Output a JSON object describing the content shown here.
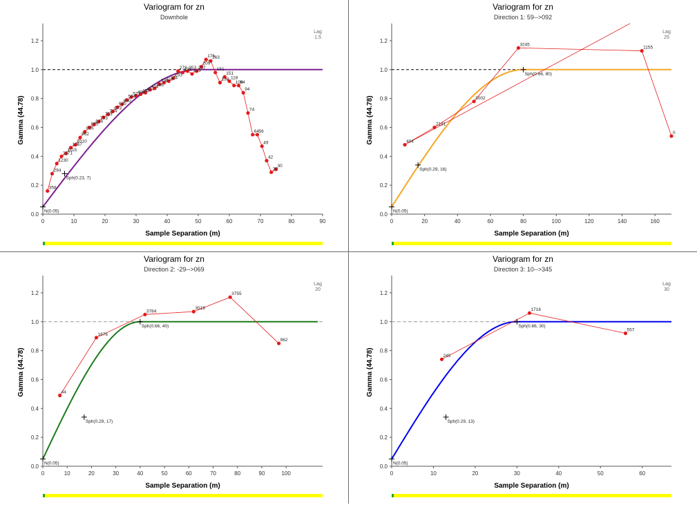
{
  "colors": {
    "points": "#e41a1c",
    "sill_line": "#000000",
    "progress_bar": "#ffff00",
    "progress_start": "#22aa22"
  },
  "chart_data": [
    {
      "type": "line",
      "title": "Variogram for zn",
      "subtitle": "Downhole",
      "xlabel": "Sample Separation (m)",
      "ylabel": "Gamma (44.78)",
      "xlim": [
        0,
        90
      ],
      "ylim": [
        0,
        1.3
      ],
      "xticks": [
        0,
        10,
        20,
        30,
        40,
        50,
        60,
        70,
        80,
        90
      ],
      "xtick_labels": [
        "0",
        "10",
        "20",
        "30",
        "40",
        "50",
        "60",
        "70",
        "80",
        "90"
      ],
      "yticks": [
        0,
        0.2,
        0.4,
        0.6,
        0.8,
        1.0,
        1.2
      ],
      "ytick_labels": [
        "0.0",
        "0.2",
        "0.4",
        "0.6",
        "0.8",
        "1.0",
        "1.2"
      ],
      "lag_label": "Lag",
      "lag_value": "1.5",
      "model_color": "#7b1f8f",
      "sill_dash": "4,3",
      "sill_color": "#000000",
      "model": {
        "nugget": 0.05,
        "sill": 1.0,
        "range": 50,
        "max_x": 90
      },
      "model_labels": [
        {
          "x": 0,
          "y": 0.05,
          "text": "N(0.05)"
        },
        {
          "x": 7,
          "y": 0.28,
          "text": "Sph(0.23, 7)"
        }
      ],
      "experimental": [
        {
          "x": 1.5,
          "y": 0.16,
          "label": "358"
        },
        {
          "x": 3,
          "y": 0.28,
          "label": "294"
        },
        {
          "x": 4.5,
          "y": 0.35,
          "label": "1230"
        },
        {
          "x": 6,
          "y": 0.4,
          "label": "1171"
        },
        {
          "x": 7.5,
          "y": 0.42,
          "label": "1115"
        },
        {
          "x": 9,
          "y": 0.46,
          "label": "1067"
        },
        {
          "x": 10.5,
          "y": 0.48,
          "label": "1010"
        },
        {
          "x": 12,
          "y": 0.53,
          "label": "962"
        },
        {
          "x": 13.5,
          "y": 0.57,
          "label": "916"
        },
        {
          "x": 15,
          "y": 0.6,
          "label": "875"
        },
        {
          "x": 16.5,
          "y": 0.62,
          "label": "834"
        },
        {
          "x": 18,
          "y": 0.64,
          "label": "793"
        },
        {
          "x": 19.5,
          "y": 0.67,
          "label": "753"
        },
        {
          "x": 21,
          "y": 0.69,
          "label": "714"
        },
        {
          "x": 22.5,
          "y": 0.71,
          "label": "673"
        },
        {
          "x": 24,
          "y": 0.74,
          "label": "635"
        },
        {
          "x": 25.5,
          "y": 0.76,
          "label": "600"
        },
        {
          "x": 27,
          "y": 0.79,
          "label": "564"
        },
        {
          "x": 28.5,
          "y": 0.81,
          "label": "527"
        },
        {
          "x": 30,
          "y": 0.82,
          "label": "494"
        },
        {
          "x": 31.5,
          "y": 0.83,
          "label": "457"
        },
        {
          "x": 33,
          "y": 0.84,
          "label": "437"
        },
        {
          "x": 34.5,
          "y": 0.86,
          "label": "411"
        },
        {
          "x": 36,
          "y": 0.87,
          "label": "386"
        },
        {
          "x": 37.5,
          "y": 0.9,
          "label": "338"
        },
        {
          "x": 39,
          "y": 0.91,
          "label": "313"
        },
        {
          "x": 40.5,
          "y": 0.92,
          "label": "304"
        },
        {
          "x": 42,
          "y": 0.94,
          "label": "293"
        },
        {
          "x": 43.5,
          "y": 0.99,
          "label": "272"
        },
        {
          "x": 45,
          "y": 0.98,
          "label": "239"
        },
        {
          "x": 46.5,
          "y": 0.99,
          "label": "253"
        },
        {
          "x": 48,
          "y": 0.97,
          "label": "219"
        },
        {
          "x": 49.5,
          "y": 0.99,
          "label": "207"
        },
        {
          "x": 51,
          "y": 1.02,
          "label": "209"
        },
        {
          "x": 52.5,
          "y": 1.07,
          "label": "176"
        },
        {
          "x": 54,
          "y": 1.06,
          "label": "163"
        },
        {
          "x": 55.5,
          "y": 0.98,
          "label": "151"
        },
        {
          "x": 57,
          "y": 0.91,
          "label": "133"
        },
        {
          "x": 58.5,
          "y": 0.95,
          "label": "151"
        },
        {
          "x": 60,
          "y": 0.92,
          "label": "118"
        },
        {
          "x": 61.5,
          "y": 0.89,
          "label": "108"
        },
        {
          "x": 63,
          "y": 0.89,
          "label": "94"
        },
        {
          "x": 64.5,
          "y": 0.84,
          "label": "94"
        },
        {
          "x": 66,
          "y": 0.7,
          "label": "74"
        },
        {
          "x": 67.5,
          "y": 0.55,
          "label": "64"
        },
        {
          "x": 69,
          "y": 0.55,
          "label": "56"
        },
        {
          "x": 70.5,
          "y": 0.47,
          "label": "49"
        },
        {
          "x": 72,
          "y": 0.37,
          "label": "42"
        },
        {
          "x": 73.5,
          "y": 0.29,
          "label": "39"
        },
        {
          "x": 75,
          "y": 0.31,
          "label": "30"
        }
      ]
    },
    {
      "type": "line",
      "title": "Variogram for zn",
      "subtitle": "Direction 1: 59-->092",
      "xlabel": "Sample Separation (m)",
      "ylabel": "Gamma (44.78)",
      "xlim": [
        0,
        170
      ],
      "ylim": [
        0,
        1.3
      ],
      "xticks": [
        0,
        20,
        40,
        60,
        80,
        100,
        120,
        140,
        160
      ],
      "xtick_labels": [
        "0",
        "20",
        "40",
        "60",
        "80",
        "100",
        "120",
        "140",
        "160"
      ],
      "yticks": [
        0,
        0.2,
        0.4,
        0.6,
        0.8,
        1.0,
        1.2
      ],
      "ytick_labels": [
        "0.0",
        "0.2",
        "0.4",
        "0.6",
        "0.8",
        "1.0",
        "1.2"
      ],
      "lag_label": "Lag",
      "lag_value": "25",
      "model_color": "#f5a623",
      "sill_dash": "4,3",
      "sill_color": "#000000",
      "model": {
        "nugget": 0.05,
        "sill": 1.0,
        "range": 80,
        "max_x": 170
      },
      "model_labels": [
        {
          "x": 0,
          "y": 0.05,
          "text": "N(0.05)"
        },
        {
          "x": 16,
          "y": 0.34,
          "text": "Sph(0.29, 16)"
        },
        {
          "x": 80,
          "y": 1.0,
          "text": "Sph(0.66, 80)"
        }
      ],
      "experimental": [
        {
          "x": 8,
          "y": 0.48,
          "label": "404"
        },
        {
          "x": 26,
          "y": 0.6,
          "label": "2191"
        },
        {
          "x": 50,
          "y": 0.78,
          "label": "3002"
        },
        {
          "x": 77,
          "y": 1.15,
          "label": "3245"
        },
        {
          "x": 152,
          "y": 1.13,
          "label": "1155"
        },
        {
          "x": 170,
          "y": 0.54,
          "label": "0"
        }
      ],
      "extra_line_start": {
        "x": 145,
        "y": 1.32
      }
    },
    {
      "type": "line",
      "title": "Variogram for zn",
      "subtitle": "Direction 2: -29-->069",
      "xlabel": "Sample Separation (m)",
      "ylabel": "Gamma (44.78)",
      "xlim": [
        0,
        115
      ],
      "ylim": [
        0,
        1.3
      ],
      "xticks": [
        0,
        10,
        20,
        30,
        40,
        50,
        60,
        70,
        80,
        90,
        100
      ],
      "xtick_labels": [
        "0",
        "10",
        "20",
        "30",
        "40",
        "50",
        "60",
        "70",
        "80",
        "90",
        "100"
      ],
      "yticks": [
        0,
        0.2,
        0.4,
        0.6,
        0.8,
        1.0,
        1.2
      ],
      "ytick_labels": [
        "0.0",
        "0.2",
        "0.4",
        "0.6",
        "0.8",
        "1.0",
        "1.2"
      ],
      "lag_label": "Lag",
      "lag_value": "20",
      "model_color": "#1a7a1a",
      "sill_dash": "5,3",
      "sill_color": "#999999",
      "model": {
        "nugget": 0.05,
        "sill": 1.0,
        "range": 40,
        "max_x": 113
      },
      "model_labels": [
        {
          "x": 0,
          "y": 0.05,
          "text": "N(0.05)"
        },
        {
          "x": 17,
          "y": 0.34,
          "text": "Sph(0.29, 17)"
        },
        {
          "x": 40,
          "y": 1.0,
          "text": "Sph(0.66, 40)"
        }
      ],
      "experimental": [
        {
          "x": 7,
          "y": 0.49,
          "label": "44"
        },
        {
          "x": 22,
          "y": 0.89,
          "label": "1676"
        },
        {
          "x": 42,
          "y": 1.05,
          "label": "3784"
        },
        {
          "x": 62,
          "y": 1.07,
          "label": "3519"
        },
        {
          "x": 77,
          "y": 1.17,
          "label": "3755"
        },
        {
          "x": 97,
          "y": 0.85,
          "label": "962"
        }
      ]
    },
    {
      "type": "line",
      "title": "Variogram for zn",
      "subtitle": "Direction 3: 10-->345",
      "xlabel": "Sample Separation (m)",
      "ylabel": "Gamma (44.78)",
      "xlim": [
        0,
        67
      ],
      "ylim": [
        0,
        1.3
      ],
      "xticks": [
        0,
        10,
        20,
        30,
        40,
        50,
        60
      ],
      "xtick_labels": [
        "0",
        "10",
        "20",
        "30",
        "40",
        "50",
        "60"
      ],
      "yticks": [
        0,
        0.2,
        0.4,
        0.6,
        0.8,
        1.0,
        1.2
      ],
      "ytick_labels": [
        "0.0",
        "0.2",
        "0.4",
        "0.6",
        "0.8",
        "1.0",
        "1.2"
      ],
      "lag_label": "Lag",
      "lag_value": "30",
      "model_color": "#0000ee",
      "sill_dash": "5,3",
      "sill_color": "#999999",
      "model": {
        "nugget": 0.05,
        "sill": 1.0,
        "range": 30,
        "max_x": 67
      },
      "model_labels": [
        {
          "x": 0,
          "y": 0.05,
          "text": "N(0.05)"
        },
        {
          "x": 13,
          "y": 0.34,
          "text": "Sph(0.29, 13)"
        },
        {
          "x": 30,
          "y": 1.0,
          "text": "Sph(0.66, 30)"
        }
      ],
      "experimental": [
        {
          "x": 12,
          "y": 0.74,
          "label": "245"
        },
        {
          "x": 33,
          "y": 1.06,
          "label": "1716"
        },
        {
          "x": 56,
          "y": 0.92,
          "label": "557"
        }
      ]
    }
  ]
}
